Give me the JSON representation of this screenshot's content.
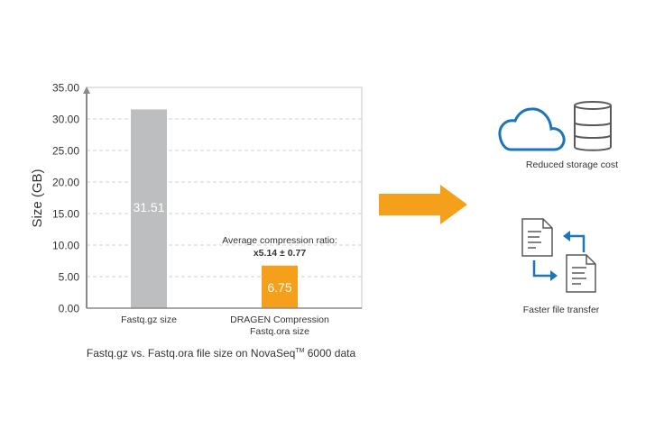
{
  "chart_data": {
    "type": "bar",
    "title": "",
    "caption": "Fastq.gz  vs. Fastq.ora file size on NovaSeq™ 6000 data",
    "caption_main": "Fastq.gz  vs. Fastq.ora file size on NovaSeq",
    "caption_tm": "TM",
    "caption_end": " 6000 data",
    "ylabel": "Size (GB)",
    "xlabel": "",
    "ylim": [
      0,
      35
    ],
    "yticks": [
      "0.00",
      "5.00",
      "10.00",
      "15.00",
      "20.00",
      "25.00",
      "30.00",
      "35.00"
    ],
    "grid": true,
    "categories": [
      [
        "Fastq.gz size"
      ],
      [
        "DRAGEN Compression",
        "Fastq.ora size"
      ]
    ],
    "values": [
      31.51,
      6.75
    ],
    "data_labels": [
      "31.51",
      "6.75"
    ],
    "colors": [
      "#bdbec0",
      "#f5a01a"
    ],
    "annotation": {
      "line1": "Average compression ratio:",
      "line2": "x5.14 ± 0.77"
    }
  },
  "benefits": [
    {
      "label": "Reduced storage cost",
      "icons": [
        "cloud-icon",
        "database-icon"
      ]
    },
    {
      "label": "Faster file transfer",
      "icons": [
        "document-icon",
        "transfer-arrows-icon"
      ]
    }
  ],
  "colors": {
    "accent": "#f5a01a",
    "icon_blue": "#1a75bc",
    "icon_gray": "#58595b"
  }
}
